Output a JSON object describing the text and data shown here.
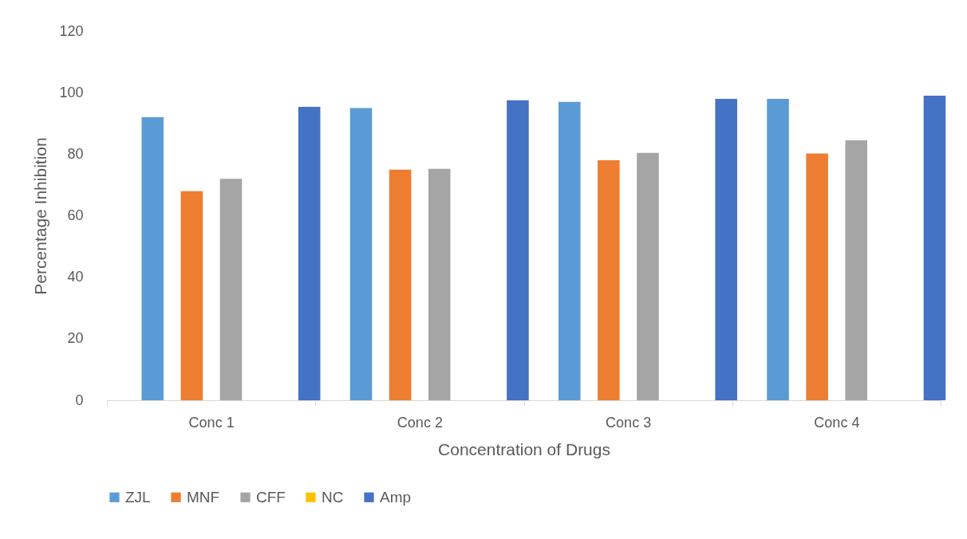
{
  "chart_data": {
    "type": "bar",
    "xlabel": "Concentration of Drugs",
    "ylabel": "Percentage Inhibition",
    "categories": [
      "Conc 1",
      "Conc 2",
      "Conc 3",
      "Conc 4"
    ],
    "series": [
      {
        "name": "ZJL",
        "color": "#5b9bd5",
        "values": [
          92,
          95,
          97,
          98
        ]
      },
      {
        "name": "MNF",
        "color": "#ed7d31",
        "values": [
          68,
          75,
          78,
          80.2
        ]
      },
      {
        "name": "CFF",
        "color": "#a5a5a5",
        "values": [
          72,
          75.2,
          80.4,
          84.5
        ]
      },
      {
        "name": "NC",
        "color": "#ffc000",
        "values": [
          0,
          0,
          0,
          0
        ]
      },
      {
        "name": "Amp",
        "color": "#4472c4",
        "values": [
          95.4,
          97.5,
          98,
          99
        ]
      }
    ],
    "ylim": [
      0,
      120
    ],
    "yticks": [
      0,
      20,
      40,
      60,
      80,
      100,
      120
    ],
    "grid": false,
    "legend": "bottom"
  }
}
